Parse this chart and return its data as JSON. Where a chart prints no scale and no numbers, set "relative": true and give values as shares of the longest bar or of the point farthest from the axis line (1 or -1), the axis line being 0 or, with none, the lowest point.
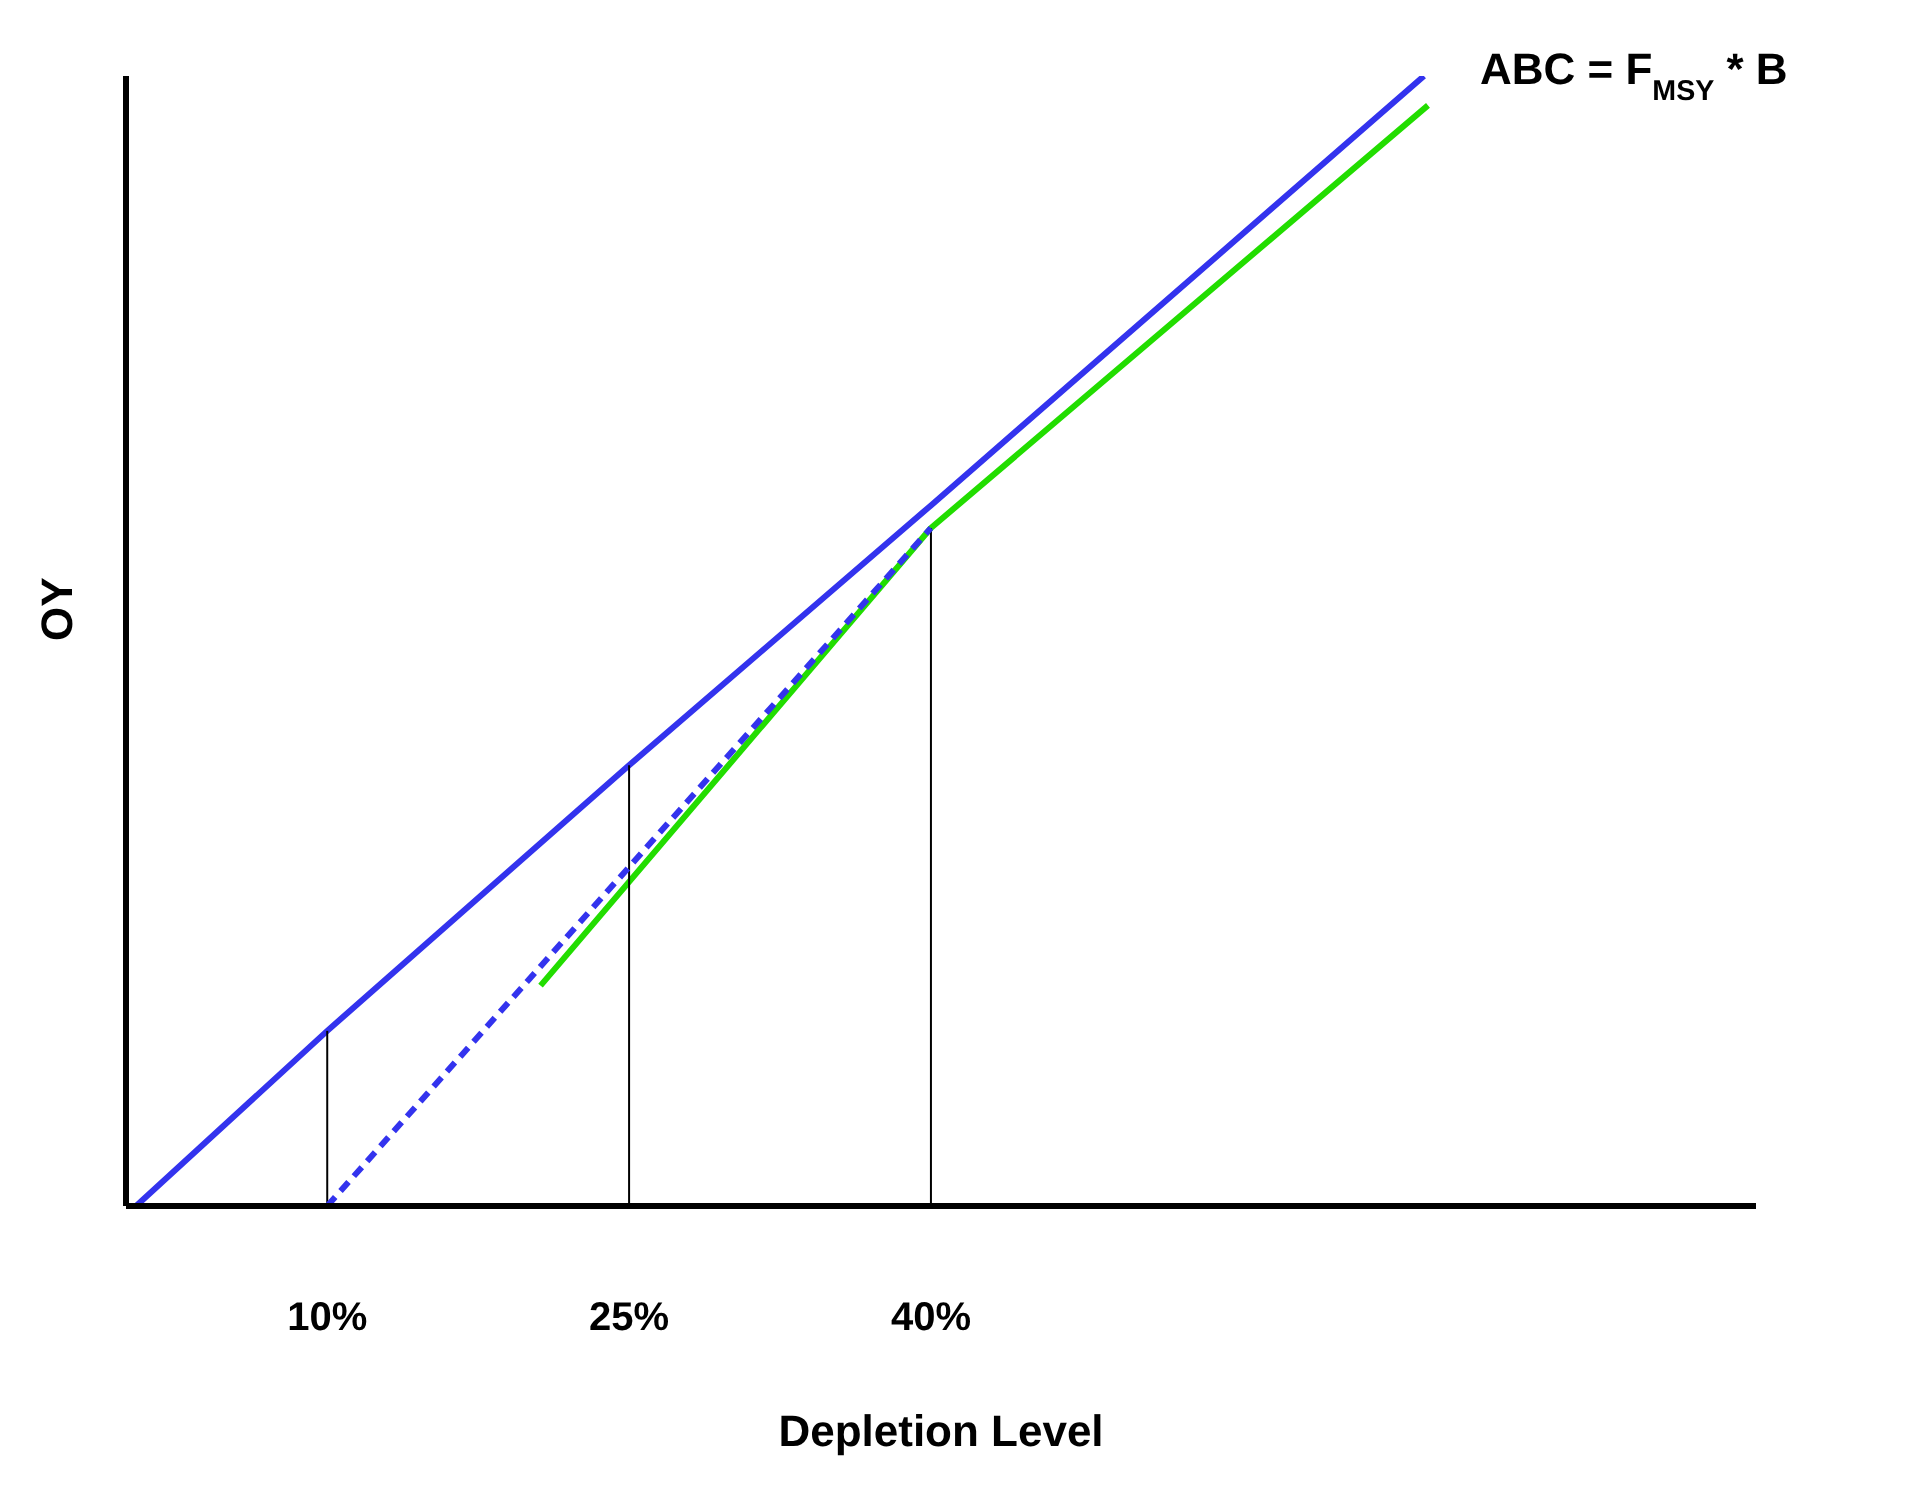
{
  "chart_data": {
    "type": "line",
    "relative": true,
    "xlabel": "Depletion Level",
    "ylabel": "OY",
    "xlim": [
      0,
      81
    ],
    "xticks": [
      {
        "value": 10,
        "label": "10%"
      },
      {
        "value": 25,
        "label": "25%"
      },
      {
        "value": 40,
        "label": "40%"
      }
    ],
    "tick_labels": "x",
    "grid": false,
    "marker": "none",
    "series": [
      {
        "color": "#3333ee",
        "x": [
          0.5,
          10,
          25,
          40,
          64.5
        ],
        "values": [
          0,
          0.155,
          0.39,
          0.62,
          1
        ],
        "line_style": "solid"
      },
      {
        "color": "#3333ee",
        "x": [
          10,
          40
        ],
        "values": [
          0,
          0.6
        ],
        "line_style": "dashed"
      },
      {
        "color": "#22dd00",
        "x": [
          20.6,
          40,
          64.7
        ],
        "values": [
          0.195,
          0.6,
          0.974
        ],
        "line_style": "solid"
      },
      {
        "color": "#000000",
        "x": [
          10,
          10
        ],
        "values": [
          0,
          0.155
        ],
        "line_style": "solid"
      },
      {
        "color": "#000000",
        "x": [
          25,
          25
        ],
        "values": [
          0,
          0.39
        ],
        "line_style": "solid"
      },
      {
        "color": "#000000",
        "x": [
          40,
          40
        ],
        "values": [
          0,
          0.6
        ],
        "line_style": "solid"
      }
    ],
    "annotations": [
      {
        "text": "ABC = F$_{MSY}$ * B",
        "x": 64.5,
        "y": 1
      }
    ]
  }
}
